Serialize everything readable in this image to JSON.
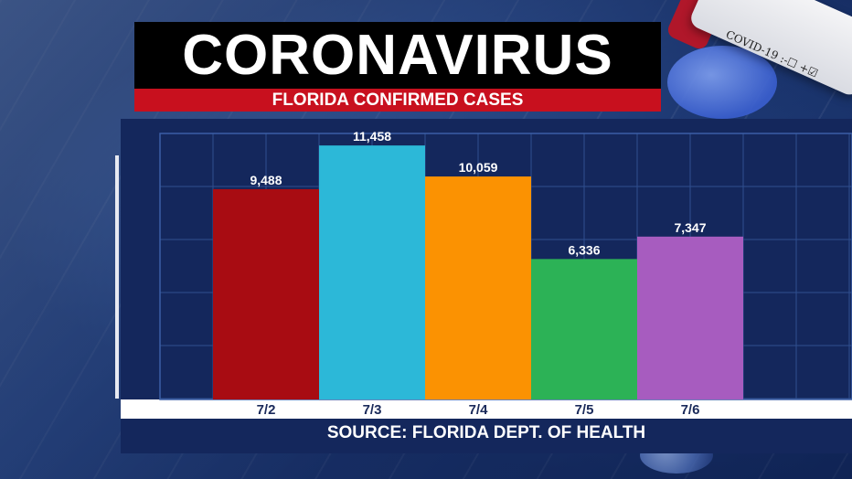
{
  "header": {
    "title": "CORONAVIRUS",
    "subtitle": "FLORIDA CONFIRMED CASES"
  },
  "source": "SOURCE: FLORIDA DEPT. OF HEALTH",
  "tube_label": "COVID-19 :-☐ +☑",
  "colors": {
    "title_bg": "#000000",
    "subtitle_bg": "#c8101e",
    "panel_bg": "#14275c",
    "grid": "#2f4f8f"
  },
  "chart_data": {
    "type": "bar",
    "title": "FLORIDA CONFIRMED CASES",
    "categories": [
      "7/2",
      "7/3",
      "7/4",
      "7/5",
      "7/6"
    ],
    "values": [
      9488,
      11458,
      10059,
      6336,
      7347
    ],
    "value_labels": [
      "9,488",
      "11,458",
      "10,059",
      "6,336",
      "7,347"
    ],
    "bar_colors": [
      "#a80c12",
      "#2cb8d8",
      "#fb9202",
      "#2cb256",
      "#a75cbf"
    ],
    "xlabel": "",
    "ylabel": "",
    "ylim": [
      0,
      12000
    ],
    "grid": true,
    "legend": "none"
  }
}
